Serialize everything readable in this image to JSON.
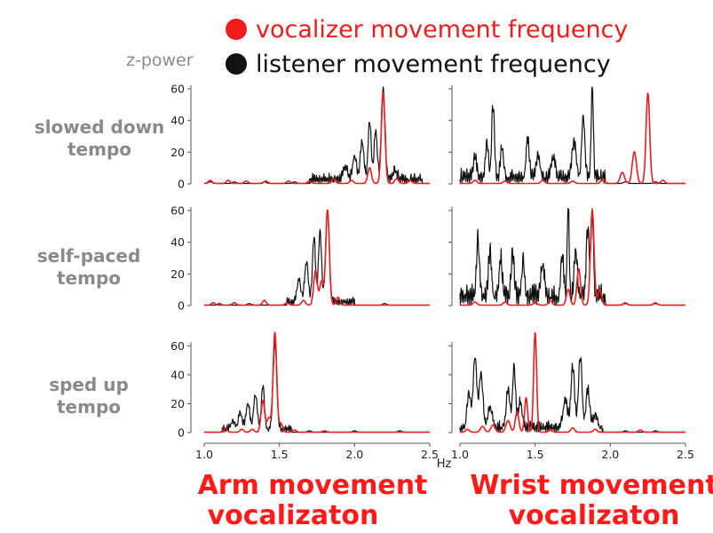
{
  "legend": {
    "vocalizer_label": "vocalizer movement frequency",
    "listener_label": "listener movement frequency"
  },
  "ylabel": "z-power",
  "xunit": "Hz",
  "rows": [
    {
      "line1": "slowed down",
      "line2": "tempo"
    },
    {
      "line1": "self-paced",
      "line2": "tempo"
    },
    {
      "line1": "sped up",
      "line2": "tempo"
    }
  ],
  "columns": [
    {
      "line1": "Arm movement",
      "line2": "vocalizaton"
    },
    {
      "line1": "Wrist movement",
      "line2": "vocalizaton"
    }
  ],
  "xticks": [
    "1.0",
    "1.5",
    "2.0",
    "2.5"
  ],
  "colors": {
    "vocalizer": "#ee1c1c",
    "listener": "#111111",
    "label_gray": "#8a8a8a",
    "title_red": "#ff1a1a"
  },
  "chart_data": [
    {
      "type": "line",
      "row": "slowed down tempo",
      "column": "Arm movement vocalizaton",
      "xlim": [
        1.0,
        2.5
      ],
      "ylim": [
        0,
        60
      ],
      "yticks": [
        0,
        20,
        40,
        60
      ],
      "series": [
        {
          "name": "vocalizer movement frequency",
          "peaks": [
            [
              2.19,
              58,
              0.012
            ]
          ],
          "bumps": [
            [
              1.04,
              2
            ],
            [
              1.16,
              2
            ],
            [
              1.28,
              1.5
            ],
            [
              1.41,
              1.5
            ],
            [
              1.56,
              1.5
            ],
            [
              1.7,
              1.5
            ],
            [
              1.86,
              3
            ],
            [
              1.98,
              2
            ],
            [
              2.1,
              10
            ],
            [
              2.28,
              3
            ],
            [
              2.37,
              2
            ]
          ]
        },
        {
          "name": "listener movement frequency",
          "peaks": [
            [
              2.19,
              57,
              0.012
            ],
            [
              2.1,
              37,
              0.01
            ],
            [
              2.14,
              32,
              0.01
            ],
            [
              2.05,
              24,
              0.012
            ],
            [
              2.0,
              15,
              0.012
            ],
            [
              1.94,
              8,
              0.014
            ],
            [
              2.27,
              6,
              0.012
            ]
          ],
          "noise": [
            1.7,
            2.45,
            5
          ],
          "bumps": [
            [
              1.04,
              1
            ],
            [
              1.2,
              1
            ],
            [
              1.4,
              1
            ],
            [
              1.6,
              1
            ]
          ]
        }
      ]
    },
    {
      "type": "line",
      "row": "slowed down tempo",
      "column": "Wrist movement vocalizaton",
      "xlim": [
        1.0,
        2.5
      ],
      "ylim": [
        0,
        60
      ],
      "yticks": [
        0,
        20,
        40,
        60
      ],
      "series": [
        {
          "name": "vocalizer movement frequency",
          "peaks": [
            [
              2.25,
              57,
              0.012
            ],
            [
              2.16,
              20,
              0.014
            ],
            [
              2.08,
              7,
              0.014
            ]
          ],
          "bumps": [
            [
              1.1,
              2
            ],
            [
              1.3,
              1.5
            ],
            [
              1.55,
              2
            ],
            [
              1.75,
              1.5
            ],
            [
              1.95,
              3
            ],
            [
              2.35,
              2
            ]
          ]
        },
        {
          "name": "listener movement frequency",
          "peaks": [
            [
              1.88,
              59,
              0.007
            ],
            [
              1.82,
              40,
              0.01
            ],
            [
              1.22,
              45,
              0.009
            ],
            [
              1.18,
              22,
              0.01
            ],
            [
              1.28,
              20,
              0.01
            ],
            [
              1.1,
              12,
              0.012
            ],
            [
              1.45,
              25,
              0.01
            ],
            [
              1.52,
              15,
              0.012
            ],
            [
              1.62,
              13,
              0.014
            ],
            [
              1.76,
              22,
              0.014
            ]
          ],
          "noise": [
            1.0,
            1.97,
            7
          ],
          "bumps": [
            [
              2.1,
              1
            ],
            [
              2.3,
              1
            ]
          ]
        }
      ]
    },
    {
      "type": "line",
      "row": "self-paced tempo",
      "column": "Arm movement vocalizaton",
      "xlim": [
        1.0,
        2.5
      ],
      "ylim": [
        0,
        60
      ],
      "yticks": [
        0,
        20,
        40,
        60
      ],
      "series": [
        {
          "name": "vocalizer movement frequency",
          "peaks": [
            [
              1.82,
              60,
              0.012
            ],
            [
              1.74,
              22,
              0.012
            ],
            [
              1.78,
              15,
              0.012
            ],
            [
              1.89,
              5,
              0.012
            ]
          ],
          "bumps": [
            [
              1.06,
              1.5
            ],
            [
              1.2,
              1.5
            ],
            [
              1.4,
              3
            ],
            [
              1.55,
              1.5
            ],
            [
              1.66,
              3
            ]
          ]
        },
        {
          "name": "listener movement frequency",
          "peaks": [
            [
              1.82,
              58,
              0.012
            ],
            [
              1.77,
              45,
              0.01
            ],
            [
              1.73,
              40,
              0.01
            ],
            [
              1.68,
              25,
              0.012
            ],
            [
              1.63,
              15,
              0.012
            ]
          ],
          "noise": [
            1.55,
            2.0,
            4
          ],
          "bumps": [
            [
              1.1,
              1
            ],
            [
              1.3,
              1
            ],
            [
              2.2,
              1
            ]
          ]
        }
      ]
    },
    {
      "type": "line",
      "row": "self-paced tempo",
      "column": "Wrist movement vocalizaton",
      "xlim": [
        1.0,
        2.5
      ],
      "ylim": [
        0,
        60
      ],
      "yticks": [
        0,
        20,
        40,
        60
      ],
      "series": [
        {
          "name": "vocalizer movement frequency",
          "peaks": [
            [
              1.88,
              60,
              0.012
            ],
            [
              1.79,
              23,
              0.012
            ],
            [
              1.72,
              10,
              0.012
            ],
            [
              1.93,
              10,
              0.012
            ]
          ],
          "bumps": [
            [
              1.1,
              2
            ],
            [
              1.3,
              2
            ],
            [
              1.5,
              2
            ],
            [
              1.6,
              3
            ],
            [
              2.1,
              1.5
            ],
            [
              2.3,
              1.5
            ]
          ]
        },
        {
          "name": "listener movement frequency",
          "peaks": [
            [
              1.72,
              63,
              0.006
            ],
            [
              1.88,
              55,
              0.008
            ],
            [
              1.85,
              42,
              0.01
            ],
            [
              1.77,
              30,
              0.01
            ],
            [
              1.68,
              25,
              0.01
            ],
            [
              1.12,
              35,
              0.01
            ],
            [
              1.2,
              28,
              0.01
            ],
            [
              1.27,
              25,
              0.01
            ],
            [
              1.35,
              26,
              0.01
            ],
            [
              1.42,
              22,
              0.01
            ],
            [
              1.55,
              20,
              0.012
            ]
          ],
          "noise": [
            1.0,
            1.97,
            10
          ],
          "bumps": [
            [
              2.1,
              1
            ],
            [
              2.3,
              1
            ]
          ]
        }
      ]
    },
    {
      "type": "line",
      "row": "sped up tempo",
      "column": "Arm movement vocalizaton",
      "xlim": [
        1.0,
        2.5
      ],
      "ylim": [
        0,
        70
      ],
      "yticks": [
        0,
        20,
        40,
        60
      ],
      "series": [
        {
          "name": "vocalizer movement frequency",
          "peaks": [
            [
              1.47,
              69,
              0.012
            ],
            [
              1.39,
              22,
              0.012
            ],
            [
              1.43,
              10,
              0.012
            ],
            [
              1.51,
              6,
              0.012
            ],
            [
              1.14,
              3,
              0.012
            ]
          ],
          "bumps": [
            [
              1.25,
              2
            ],
            [
              1.32,
              2
            ],
            [
              1.6,
              1.5
            ],
            [
              1.8,
              1
            ]
          ]
        },
        {
          "name": "listener movement frequency",
          "peaks": [
            [
              1.47,
              60,
              0.012
            ],
            [
              1.39,
              30,
              0.01
            ],
            [
              1.34,
              24,
              0.012
            ],
            [
              1.29,
              18,
              0.012
            ],
            [
              1.24,
              12,
              0.012
            ],
            [
              1.19,
              6,
              0.014
            ]
          ],
          "noise": [
            1.12,
            1.58,
            4
          ],
          "bumps": [
            [
              1.7,
              1
            ],
            [
              2.0,
              1
            ],
            [
              2.3,
              1
            ]
          ]
        }
      ]
    },
    {
      "type": "line",
      "row": "sped up tempo",
      "column": "Wrist movement vocalizaton",
      "xlim": [
        1.0,
        2.5
      ],
      "ylim": [
        0,
        70
      ],
      "yticks": [
        0,
        20,
        40,
        60
      ],
      "series": [
        {
          "name": "vocalizer movement frequency",
          "peaks": [
            [
              1.5,
              69,
              0.01
            ],
            [
              1.44,
              24,
              0.01
            ],
            [
              1.38,
              14,
              0.012
            ],
            [
              1.32,
              8,
              0.014
            ],
            [
              1.22,
              5,
              0.014
            ],
            [
              1.15,
              4,
              0.014
            ]
          ],
          "bumps": [
            [
              1.05,
              2
            ],
            [
              1.6,
              2
            ],
            [
              1.75,
              3
            ],
            [
              1.9,
              2
            ],
            [
              2.2,
              1.5
            ]
          ]
        },
        {
          "name": "listener movement frequency",
          "peaks": [
            [
              1.1,
              48,
              0.012
            ],
            [
              1.14,
              38,
              0.012
            ],
            [
              1.06,
              24,
              0.012
            ],
            [
              1.2,
              15,
              0.014
            ],
            [
              1.36,
              42,
              0.01
            ],
            [
              1.32,
              27,
              0.012
            ],
            [
              1.4,
              18,
              0.012
            ],
            [
              1.8,
              48,
              0.012
            ],
            [
              1.75,
              41,
              0.012
            ],
            [
              1.85,
              26,
              0.012
            ],
            [
              1.7,
              20,
              0.014
            ],
            [
              1.9,
              9,
              0.014
            ]
          ],
          "noise": [
            1.0,
            1.95,
            6
          ],
          "bumps": [
            [
              2.1,
              1
            ],
            [
              2.3,
              1
            ]
          ]
        }
      ]
    }
  ]
}
